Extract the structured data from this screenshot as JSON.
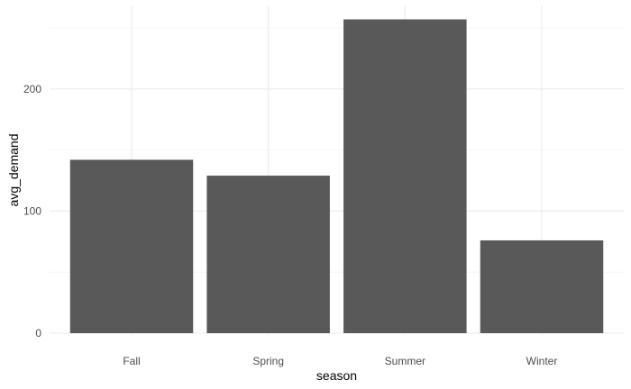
{
  "chart_data": {
    "type": "bar",
    "title": "",
    "xlabel": "season",
    "ylabel": "avg_demand",
    "categories": [
      "Fall",
      "Spring",
      "Summer",
      "Winter"
    ],
    "values": [
      142,
      129,
      257,
      76
    ],
    "ylim": [
      0,
      270
    ],
    "y_ticks": [
      0,
      100,
      200
    ],
    "grid": true,
    "legend": "none",
    "colors": {
      "bar": "#595959",
      "grid_major": "#ebebeb",
      "grid_minor": "#f2f2f2",
      "tick_text": "#4d4d4d",
      "axis_title": "#000000",
      "background": "#ffffff"
    }
  }
}
